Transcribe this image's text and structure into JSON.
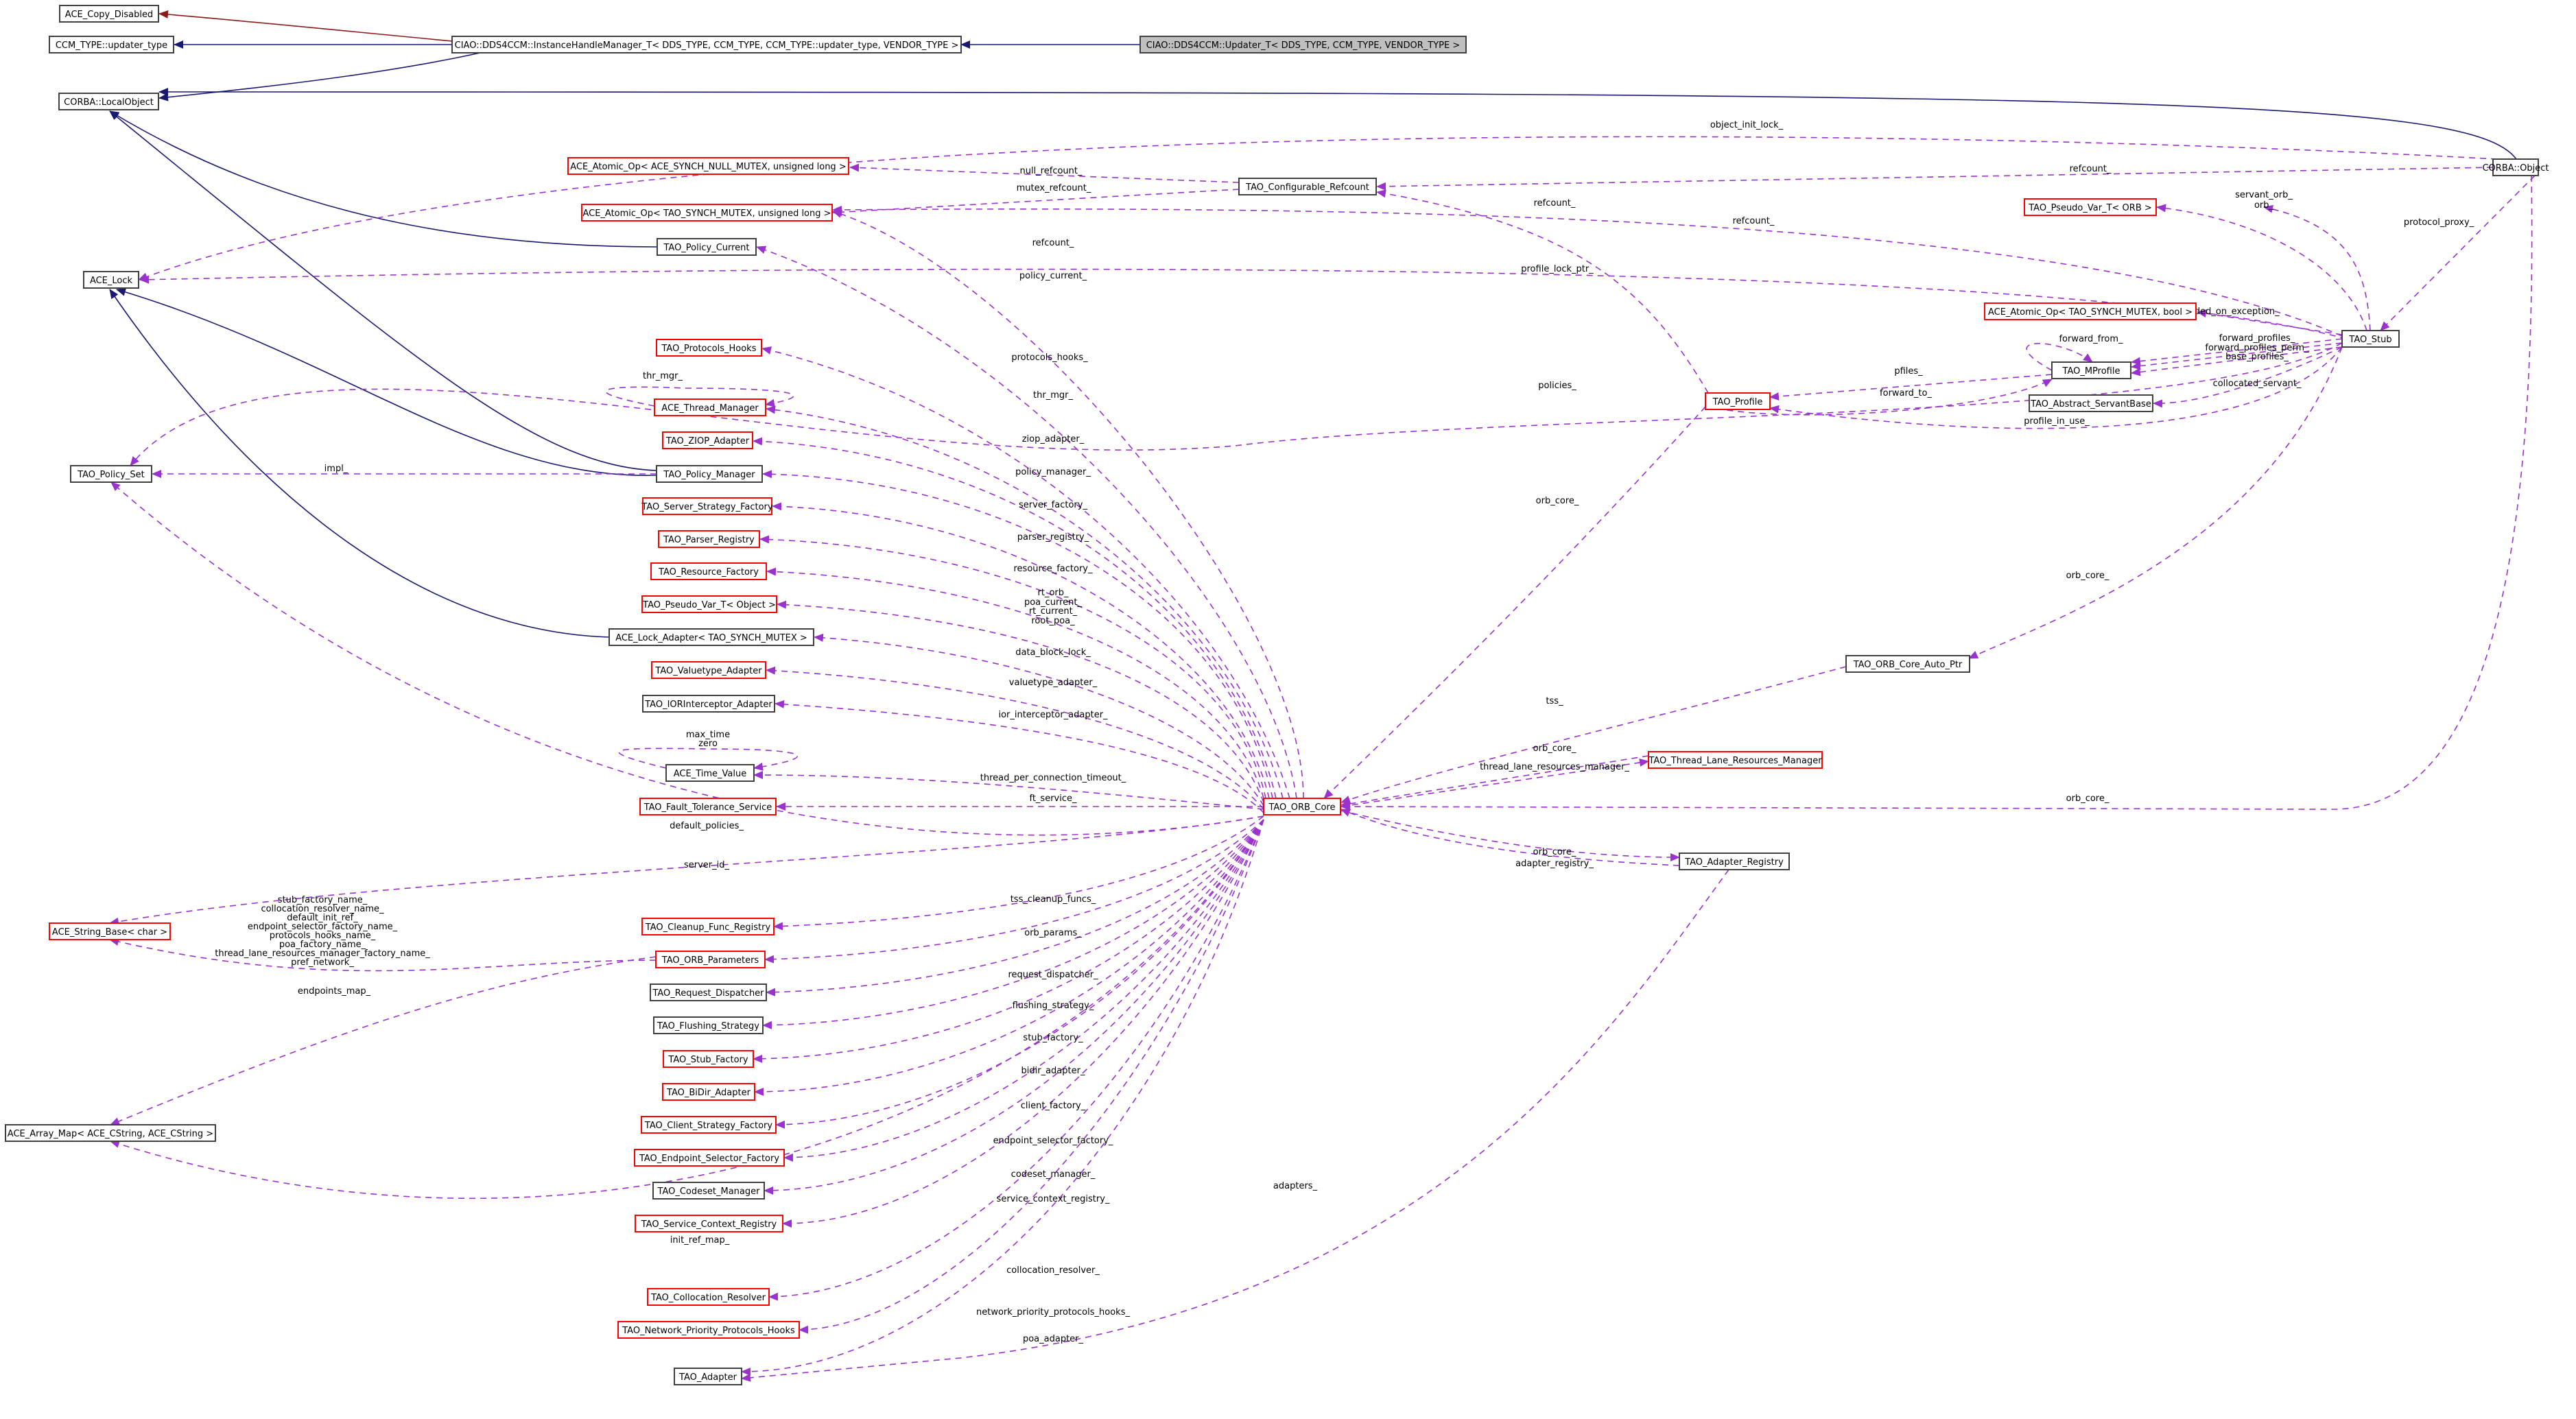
{
  "colors": {
    "black_border": "#404040",
    "red_border": "#ff0000",
    "focus_fill": "#bfbfbf",
    "inherit_edge": "#191970",
    "private_inherit_edge": "#8b1a1a",
    "usage_edge": "#9a32cd",
    "node_fill": "#ffffff"
  },
  "nodes": [
    {
      "id": "ace_copy_disabled",
      "label": "ACE_Copy_Disabled",
      "border": "black"
    },
    {
      "id": "ccm_type_updater",
      "label": "CCM_TYPE::updater_type",
      "border": "black"
    },
    {
      "id": "ihm",
      "label": "CIAO::DDS4CCM::InstanceHandleManager_T< DDS_TYPE, CCM_TYPE, CCM_TYPE::updater_type, VENDOR_TYPE >",
      "border": "black"
    },
    {
      "id": "updater",
      "label": "CIAO::DDS4CCM::Updater_T< DDS_TYPE, CCM_TYPE, VENDOR_TYPE >",
      "border": "black",
      "focus": true
    },
    {
      "id": "corba_localobject",
      "label": "CORBA::LocalObject",
      "border": "black"
    },
    {
      "id": "corba_object",
      "label": "CORBA::Object",
      "border": "black"
    },
    {
      "id": "atomic_null",
      "label": "ACE_Atomic_Op< ACE_SYNCH_NULL_MUTEX, unsigned long >",
      "border": "red"
    },
    {
      "id": "atomic_tao_ul",
      "label": "ACE_Atomic_Op< TAO_SYNCH_MUTEX, unsigned long >",
      "border": "red"
    },
    {
      "id": "configurable_refcount",
      "label": "TAO_Configurable_Refcount",
      "border": "black"
    },
    {
      "id": "pseudo_var_orb",
      "label": "TAO_Pseudo_Var_T< ORB >",
      "border": "red"
    },
    {
      "id": "policy_current",
      "label": "TAO_Policy_Current",
      "border": "black"
    },
    {
      "id": "ace_lock",
      "label": "ACE_Lock",
      "border": "black"
    },
    {
      "id": "atomic_bool",
      "label": "ACE_Atomic_Op< TAO_SYNCH_MUTEX, bool >",
      "border": "red"
    },
    {
      "id": "tao_stub",
      "label": "TAO_Stub",
      "border": "black"
    },
    {
      "id": "protocols_hooks",
      "label": "TAO_Protocols_Hooks",
      "border": "red"
    },
    {
      "id": "tao_mprofile",
      "label": "TAO_MProfile",
      "border": "black"
    },
    {
      "id": "thread_manager",
      "label": "ACE_Thread_Manager",
      "border": "red"
    },
    {
      "id": "tao_profile",
      "label": "TAO_Profile",
      "border": "red"
    },
    {
      "id": "abstract_servantbase",
      "label": "TAO_Abstract_ServantBase",
      "border": "black"
    },
    {
      "id": "ziop_adapter",
      "label": "TAO_ZIOP_Adapter",
      "border": "red"
    },
    {
      "id": "policy_set",
      "label": "TAO_Policy_Set",
      "border": "black"
    },
    {
      "id": "policy_manager",
      "label": "TAO_Policy_Manager",
      "border": "black"
    },
    {
      "id": "server_strategy_factory",
      "label": "TAO_Server_Strategy_Factory",
      "border": "red"
    },
    {
      "id": "parser_registry",
      "label": "TAO_Parser_Registry",
      "border": "red"
    },
    {
      "id": "resource_factory",
      "label": "TAO_Resource_Factory",
      "border": "red"
    },
    {
      "id": "pseudo_var_object",
      "label": "TAO_Pseudo_Var_T< Object >",
      "border": "red"
    },
    {
      "id": "lock_adapter",
      "label": "ACE_Lock_Adapter< TAO_SYNCH_MUTEX >",
      "border": "black"
    },
    {
      "id": "valuetype_adapter",
      "label": "TAO_Valuetype_Adapter",
      "border": "red"
    },
    {
      "id": "ior_interceptor_adapter",
      "label": "TAO_IORInterceptor_Adapter",
      "border": "black"
    },
    {
      "id": "orb_core_auto_ptr",
      "label": "TAO_ORB_Core_Auto_Ptr",
      "border": "black"
    },
    {
      "id": "time_value",
      "label": "ACE_Time_Value",
      "border": "black"
    },
    {
      "id": "thread_lane_resources_manager",
      "label": "TAO_Thread_Lane_Resources_Manager",
      "border": "red"
    },
    {
      "id": "fault_tolerance_service",
      "label": "TAO_Fault_Tolerance_Service",
      "border": "red"
    },
    {
      "id": "orb_core",
      "label": "TAO_ORB_Core",
      "border": "red"
    },
    {
      "id": "adapter_registry",
      "label": "TAO_Adapter_Registry",
      "border": "black"
    },
    {
      "id": "string_base",
      "label": "ACE_String_Base< char >",
      "border": "red"
    },
    {
      "id": "cleanup_func_registry",
      "label": "TAO_Cleanup_Func_Registry",
      "border": "red"
    },
    {
      "id": "orb_parameters",
      "label": "TAO_ORB_Parameters",
      "border": "red"
    },
    {
      "id": "request_dispatcher",
      "label": "TAO_Request_Dispatcher",
      "border": "black"
    },
    {
      "id": "flushing_strategy",
      "label": "TAO_Flushing_Strategy",
      "border": "black"
    },
    {
      "id": "stub_factory",
      "label": "TAO_Stub_Factory",
      "border": "red"
    },
    {
      "id": "bidir_adapter",
      "label": "TAO_BiDir_Adapter",
      "border": "red"
    },
    {
      "id": "array_map",
      "label": "ACE_Array_Map< ACE_CString, ACE_CString >",
      "border": "black"
    },
    {
      "id": "client_strategy_factory",
      "label": "TAO_Client_Strategy_Factory",
      "border": "red"
    },
    {
      "id": "endpoint_selector_factory",
      "label": "TAO_Endpoint_Selector_Factory",
      "border": "red"
    },
    {
      "id": "codeset_manager",
      "label": "TAO_Codeset_Manager",
      "border": "black"
    },
    {
      "id": "service_context_registry",
      "label": "TAO_Service_Context_Registry",
      "border": "red"
    },
    {
      "id": "collocation_resolver",
      "label": "TAO_Collocation_Resolver",
      "border": "red"
    },
    {
      "id": "network_priority_protocols_hooks",
      "label": "TAO_Network_Priority_Protocols_Hooks",
      "border": "red"
    },
    {
      "id": "tao_adapter",
      "label": "TAO_Adapter",
      "border": "black"
    }
  ],
  "edge_labels": [
    "object_init_lock_",
    "refcount_",
    "null_refcount_",
    "mutex_refcount_",
    "refcount_",
    "refcount_",
    "servant_orb_",
    "orb_",
    "protocol_proxy_",
    "refcount_",
    "policy_current_",
    "profile_lock_ptr_",
    "forwarded_on_exception_",
    "protocols_hooks_",
    "forward_from_",
    "forward_profiles_",
    "forward_profiles_perm_",
    "base_profiles_",
    "pfiles_",
    "forward_to_",
    "collocated_servant_",
    "thr_mgr_",
    "thr_mgr_",
    "policies_",
    "profile_in_use_",
    "ziop_adapter_",
    "impl_",
    "policy_manager_",
    "server_factory_",
    "parser_registry_",
    "resource_factory_",
    "orb_core_",
    "rt_orb_",
    "poa_current_",
    "rt_current_",
    "root_poa_",
    "data_block_lock_",
    "orb_core_",
    "valuetype_adapter_",
    "ior_interceptor_adapter_",
    "max_time",
    "zero",
    "tss_",
    "orb_core_",
    "thread_per_connection_timeout_",
    "thread_lane_resources_manager_",
    "ft_service_",
    "orb_core_",
    "default_policies_",
    "adapter_registry_",
    "orb_core_",
    "server_id_",
    "stub_factory_name_",
    "collocation_resolver_name_",
    "default_init_ref_",
    "endpoint_selector_factory_name_",
    "protocols_hooks_name_",
    "poa_factory_name_",
    "thread_lane_resources_manager_factory_name_",
    "pref_network_",
    "tss_cleanup_funcs_",
    "orb_params_",
    "endpoints_map_",
    "request_dispatcher_",
    "flushing_strategy_",
    "stub_factory_",
    "bidir_adapter_",
    "client_factory_",
    "endpoint_selector_factory_",
    "adapters_",
    "codeset_manager_",
    "service_context_registry_",
    "init_ref_map_",
    "collocation_resolver_",
    "network_priority_protocols_hooks_",
    "poa_adapter_"
  ]
}
